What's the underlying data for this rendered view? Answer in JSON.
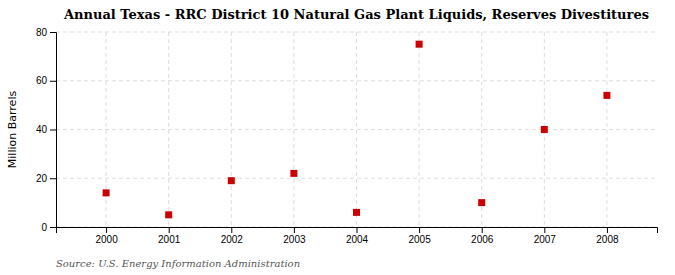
{
  "chart_data": {
    "type": "scatter",
    "title": "Annual Texas - RRC District 10 Natural Gas Plant Liquids, Reserves Divestitures",
    "ylabel": "Million Barrels",
    "annotations": [
      "Source: U.S. Energy Information Administration"
    ],
    "x": [
      2000,
      2001,
      2002,
      2003,
      2004,
      2005,
      2006,
      2007,
      2008
    ],
    "values": [
      14,
      5,
      19,
      22,
      6,
      75,
      10,
      40,
      54
    ],
    "xlim": [
      1999.2,
      2008.8
    ],
    "xticks": [
      2000,
      2001,
      2002,
      2003,
      2004,
      2005,
      2006,
      2007,
      2008
    ],
    "ylim": [
      0,
      80
    ],
    "yticks": [
      0,
      20,
      40,
      60,
      80
    ],
    "grid": true,
    "color": "#cc0000",
    "marker": "square"
  }
}
